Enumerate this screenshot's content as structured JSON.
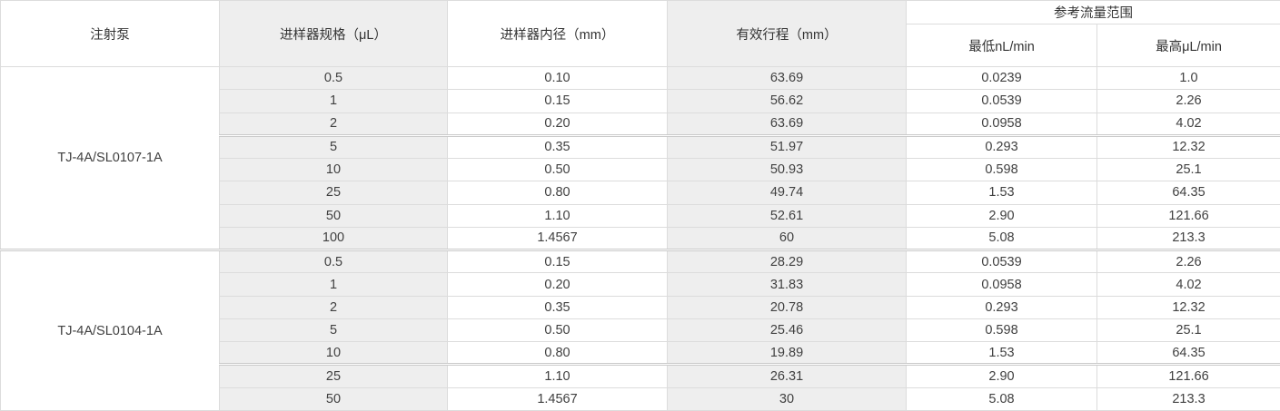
{
  "chart_data": {
    "type": "table",
    "columns": [
      "注射泵",
      "进样器规格（μL）",
      "进样器内径（mm）",
      "有效行程（mm）",
      "参考流量范围"
    ],
    "flow_subcolumns": [
      "最低nL/min",
      "最高μL/min"
    ],
    "groups": [
      {
        "pump": "TJ-4A/SL0107-1A",
        "rows": [
          [
            "0.5",
            "0.10",
            "63.69",
            "0.0239",
            "1.0"
          ],
          [
            "1",
            "0.15",
            "56.62",
            "0.0539",
            "2.26"
          ],
          [
            "2",
            "0.20",
            "63.69",
            "0.0958",
            "4.02"
          ],
          [
            "5",
            "0.35",
            "51.97",
            "0.293",
            "12.32"
          ],
          [
            "10",
            "0.50",
            "50.93",
            "0.598",
            "25.1"
          ],
          [
            "25",
            "0.80",
            "49.74",
            "1.53",
            "64.35"
          ],
          [
            "50",
            "1.10",
            "52.61",
            "2.90",
            "121.66"
          ],
          [
            "100",
            "1.4567",
            "60",
            "5.08",
            "213.3"
          ]
        ],
        "thick_separators_after_rows": [
          2
        ],
        "divider_after": true
      },
      {
        "pump": "TJ-4A/SL0104-1A",
        "rows": [
          [
            "0.5",
            "0.15",
            "28.29",
            "0.0539",
            "2.26"
          ],
          [
            "1",
            "0.20",
            "31.83",
            "0.0958",
            "4.02"
          ],
          [
            "2",
            "0.35",
            "20.78",
            "0.293",
            "12.32"
          ],
          [
            "5",
            "0.50",
            "25.46",
            "0.598",
            "25.1"
          ],
          [
            "10",
            "0.80",
            "19.89",
            "1.53",
            "64.35"
          ],
          [
            "25",
            "1.10",
            "26.31",
            "2.90",
            "121.66"
          ],
          [
            "50",
            "1.4567",
            "30",
            "5.08",
            "213.3"
          ]
        ],
        "thick_separators_after_rows": [
          4
        ],
        "divider_after": false
      }
    ]
  },
  "colors": {
    "shaded": "#eeeeee",
    "border": "#dcdcdc",
    "outer-border": "#cccccc",
    "separator": "#c9c9c9",
    "text": "#404040"
  }
}
